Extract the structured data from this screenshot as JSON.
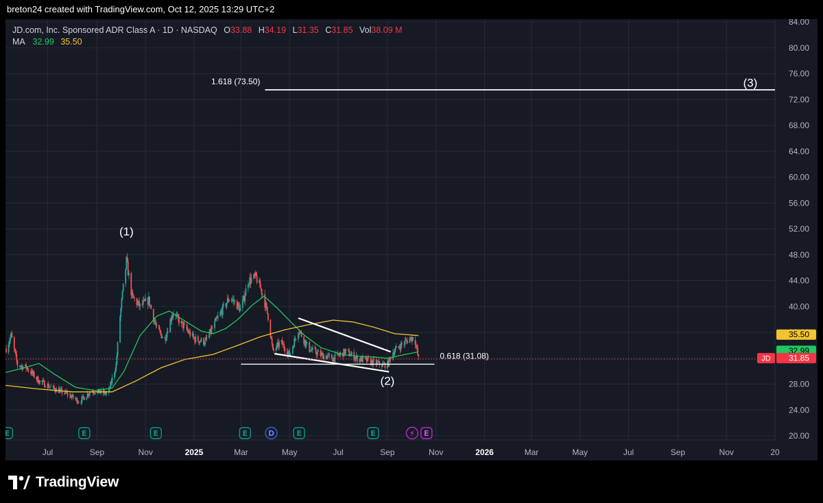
{
  "header": {
    "attribution": "breton24 created with TradingView.com, Oct 12, 2025 13:29 UTC+2"
  },
  "legend": {
    "symbol_line": "JD.com, Inc. Sponsored ADR Class A · 1D · NASDAQ",
    "o_label": "O",
    "o_value": "33.88",
    "h_label": "H",
    "h_value": "34.19",
    "l_label": "L",
    "l_value": "31.35",
    "c_label": "C",
    "c_value": "31.85",
    "vol_label": "Vol",
    "vol_value": "38.09 M",
    "ma_label": "MA",
    "ma1_value": "32.99",
    "ma2_value": "35.50"
  },
  "footer": {
    "brand": "TradingView"
  },
  "colors": {
    "background": "#161a25",
    "up": "#26a69a",
    "down": "#ef5350",
    "ma_fast": "#22c55e",
    "ma_slow": "#f4c430",
    "price_tag": "#f23645",
    "grid": "#262b36",
    "drawing": "#ffffff"
  },
  "chart_data": {
    "type": "candlestick",
    "price_axis": {
      "ticks": [
        "84.00",
        "80.00",
        "76.00",
        "72.00",
        "68.00",
        "64.00",
        "60.00",
        "56.00",
        "52.00",
        "48.00",
        "44.00",
        "40.00",
        "36.00",
        "32.00",
        "28.00",
        "24.00",
        "20.00"
      ],
      "ylim": [
        20,
        84
      ]
    },
    "time_axis": {
      "ticks": [
        {
          "label": "Jul",
          "date": "2024-07-01"
        },
        {
          "label": "Sep",
          "date": "2024-09-01"
        },
        {
          "label": "Nov",
          "date": "2024-11-01"
        },
        {
          "label": "2025",
          "date": "2025-01-01",
          "bold": true
        },
        {
          "label": "Mar",
          "date": "2025-03-01"
        },
        {
          "label": "May",
          "date": "2025-05-01"
        },
        {
          "label": "Jul",
          "date": "2025-07-01"
        },
        {
          "label": "Sep",
          "date": "2025-09-01"
        },
        {
          "label": "Nov",
          "date": "2025-11-01"
        },
        {
          "label": "2026",
          "date": "2026-01-01",
          "bold": true
        },
        {
          "label": "Mar",
          "date": "2026-03-01"
        },
        {
          "label": "May",
          "date": "2026-05-01"
        },
        {
          "label": "Jul",
          "date": "2026-07-01"
        },
        {
          "label": "Sep",
          "date": "2026-09-01"
        },
        {
          "label": "Nov",
          "date": "2026-11-01"
        },
        {
          "label": "20",
          "date": "2027-01-01"
        }
      ],
      "xlim": [
        "2024-05-09",
        "2027-01-01"
      ]
    },
    "price_keypoints": [
      {
        "date": "2024-05-10",
        "price": 33.5
      },
      {
        "date": "2024-05-16",
        "price": 35.5
      },
      {
        "date": "2024-05-24",
        "price": 31.0
      },
      {
        "date": "2024-06-05",
        "price": 30.5
      },
      {
        "date": "2024-06-20",
        "price": 28.5
      },
      {
        "date": "2024-07-05",
        "price": 27.5
      },
      {
        "date": "2024-07-25",
        "price": 26.5
      },
      {
        "date": "2024-08-10",
        "price": 25.3
      },
      {
        "date": "2024-08-25",
        "price": 27.0
      },
      {
        "date": "2024-09-15",
        "price": 26.5
      },
      {
        "date": "2024-09-25",
        "price": 31.0
      },
      {
        "date": "2024-09-30",
        "price": 38.5
      },
      {
        "date": "2024-10-05",
        "price": 44.0
      },
      {
        "date": "2024-10-08",
        "price": 47.0
      },
      {
        "date": "2024-10-15",
        "price": 41.5
      },
      {
        "date": "2024-10-25",
        "price": 40.0
      },
      {
        "date": "2024-11-05",
        "price": 41.0
      },
      {
        "date": "2024-11-15",
        "price": 36.5
      },
      {
        "date": "2024-11-25",
        "price": 35.0
      },
      {
        "date": "2024-12-05",
        "price": 39.0
      },
      {
        "date": "2024-12-15",
        "price": 37.5
      },
      {
        "date": "2025-01-01",
        "price": 35.0
      },
      {
        "date": "2025-01-15",
        "price": 34.5
      },
      {
        "date": "2025-02-01",
        "price": 38.5
      },
      {
        "date": "2025-02-15",
        "price": 41.5
      },
      {
        "date": "2025-03-01",
        "price": 39.5
      },
      {
        "date": "2025-03-10",
        "price": 44.0
      },
      {
        "date": "2025-03-20",
        "price": 44.5
      },
      {
        "date": "2025-03-28",
        "price": 42.0
      },
      {
        "date": "2025-04-04",
        "price": 38.5
      },
      {
        "date": "2025-04-10",
        "price": 33.0
      },
      {
        "date": "2025-04-20",
        "price": 34.5
      },
      {
        "date": "2025-05-01",
        "price": 32.5
      },
      {
        "date": "2025-05-12",
        "price": 36.5
      },
      {
        "date": "2025-05-25",
        "price": 33.5
      },
      {
        "date": "2025-06-10",
        "price": 32.5
      },
      {
        "date": "2025-06-25",
        "price": 32.0
      },
      {
        "date": "2025-07-10",
        "price": 33.0
      },
      {
        "date": "2025-07-25",
        "price": 32.0
      },
      {
        "date": "2025-08-10",
        "price": 31.5
      },
      {
        "date": "2025-08-25",
        "price": 31.0
      },
      {
        "date": "2025-09-01",
        "price": 31.0
      },
      {
        "date": "2025-09-08",
        "price": 33.0
      },
      {
        "date": "2025-09-18",
        "price": 34.0
      },
      {
        "date": "2025-09-28",
        "price": 35.0
      },
      {
        "date": "2025-10-05",
        "price": 35.3
      },
      {
        "date": "2025-10-10",
        "price": 31.85
      }
    ],
    "series": [
      {
        "name": "MA",
        "value": 32.99,
        "points": [
          {
            "date": "2024-05-09",
            "price": 29.8
          },
          {
            "date": "2024-06-01",
            "price": 30.5
          },
          {
            "date": "2024-06-20",
            "price": 31.2
          },
          {
            "date": "2024-07-10",
            "price": 29.5
          },
          {
            "date": "2024-08-05",
            "price": 27.5
          },
          {
            "date": "2024-08-30",
            "price": 27.0
          },
          {
            "date": "2024-09-20",
            "price": 27.4
          },
          {
            "date": "2024-10-05",
            "price": 30.0
          },
          {
            "date": "2024-10-25",
            "price": 35.5
          },
          {
            "date": "2024-11-15",
            "price": 38.5
          },
          {
            "date": "2024-12-01",
            "price": 39.3
          },
          {
            "date": "2024-12-20",
            "price": 37.8
          },
          {
            "date": "2025-01-10",
            "price": 36.2
          },
          {
            "date": "2025-01-25",
            "price": 35.8
          },
          {
            "date": "2025-02-10",
            "price": 36.6
          },
          {
            "date": "2025-02-25",
            "price": 38.0
          },
          {
            "date": "2025-03-15",
            "price": 40.2
          },
          {
            "date": "2025-03-30",
            "price": 41.6
          },
          {
            "date": "2025-04-15",
            "price": 39.8
          },
          {
            "date": "2025-05-01",
            "price": 37.8
          },
          {
            "date": "2025-05-20",
            "price": 35.5
          },
          {
            "date": "2025-06-10",
            "price": 33.6
          },
          {
            "date": "2025-07-05",
            "price": 32.6
          },
          {
            "date": "2025-07-25",
            "price": 32.3
          },
          {
            "date": "2025-08-15",
            "price": 32.2
          },
          {
            "date": "2025-09-01",
            "price": 32.0
          },
          {
            "date": "2025-09-20",
            "price": 32.5
          },
          {
            "date": "2025-10-10",
            "price": 32.99
          }
        ]
      },
      {
        "name": "MA",
        "value": 35.5,
        "points": [
          {
            "date": "2024-05-09",
            "price": 27.8
          },
          {
            "date": "2024-06-15",
            "price": 27.3
          },
          {
            "date": "2024-08-01",
            "price": 26.8
          },
          {
            "date": "2024-09-20",
            "price": 26.8
          },
          {
            "date": "2024-10-20",
            "price": 28.5
          },
          {
            "date": "2024-11-20",
            "price": 30.5
          },
          {
            "date": "2024-12-20",
            "price": 31.8
          },
          {
            "date": "2025-01-25",
            "price": 32.6
          },
          {
            "date": "2025-02-25",
            "price": 34.0
          },
          {
            "date": "2025-03-25",
            "price": 35.3
          },
          {
            "date": "2025-04-25",
            "price": 36.4
          },
          {
            "date": "2025-05-25",
            "price": 37.2
          },
          {
            "date": "2025-06-25",
            "price": 37.9
          },
          {
            "date": "2025-07-20",
            "price": 37.6
          },
          {
            "date": "2025-08-15",
            "price": 36.8
          },
          {
            "date": "2025-09-10",
            "price": 35.8
          },
          {
            "date": "2025-10-10",
            "price": 35.5
          }
        ]
      }
    ],
    "price_tags": [
      {
        "label": "35.50",
        "value": 35.5,
        "color": "#f4c430",
        "text_color": "#000000"
      },
      {
        "label": "32.99",
        "value": 32.99,
        "color": "#22c55e",
        "text_color": "#000000"
      },
      {
        "symbol": "JD",
        "label": "31.85",
        "value": 31.85,
        "color": "#f23645",
        "text_color": "#ffffff"
      }
    ],
    "drawings": {
      "fib_high": {
        "label": "1.618 (73.50)",
        "price": 73.5,
        "from": "2025-04-01",
        "to": "2027-01-01"
      },
      "fib_low": {
        "label": "0.618 (31.08)",
        "price": 31.08,
        "from": "2025-03-01",
        "to": "2025-10-30"
      },
      "wedge_upper": [
        {
          "date": "2025-05-12",
          "price": 38.2
        },
        {
          "date": "2025-09-05",
          "price": 33.0
        }
      ],
      "wedge_lower": [
        {
          "date": "2025-04-12",
          "price": 32.7
        },
        {
          "date": "2025-09-03",
          "price": 29.9
        }
      ]
    },
    "annotations": [
      {
        "text": "(1)",
        "date": "2024-10-08",
        "price": 51.0
      },
      {
        "text": "(2)",
        "date": "2025-09-01",
        "price": 27.9
      },
      {
        "text": "(3)",
        "date": "2026-12-01",
        "price": 74.0
      }
    ],
    "events": [
      {
        "letter": "E",
        "date": "2024-05-11",
        "type": "earnings"
      },
      {
        "letter": "E",
        "date": "2024-08-16",
        "type": "earnings"
      },
      {
        "letter": "E",
        "date": "2024-11-14",
        "type": "earnings"
      },
      {
        "letter": "E",
        "date": "2025-03-06",
        "type": "earnings"
      },
      {
        "letter": "D",
        "date": "2025-04-08",
        "type": "dividend"
      },
      {
        "letter": "E",
        "date": "2025-05-13",
        "type": "earnings"
      },
      {
        "letter": "E",
        "date": "2025-08-14",
        "type": "earnings"
      },
      {
        "letter": "⚡",
        "date": "2025-10-02",
        "type": "news"
      },
      {
        "letter": "E",
        "date": "2025-10-20",
        "type": "earnings-upcoming"
      }
    ]
  }
}
